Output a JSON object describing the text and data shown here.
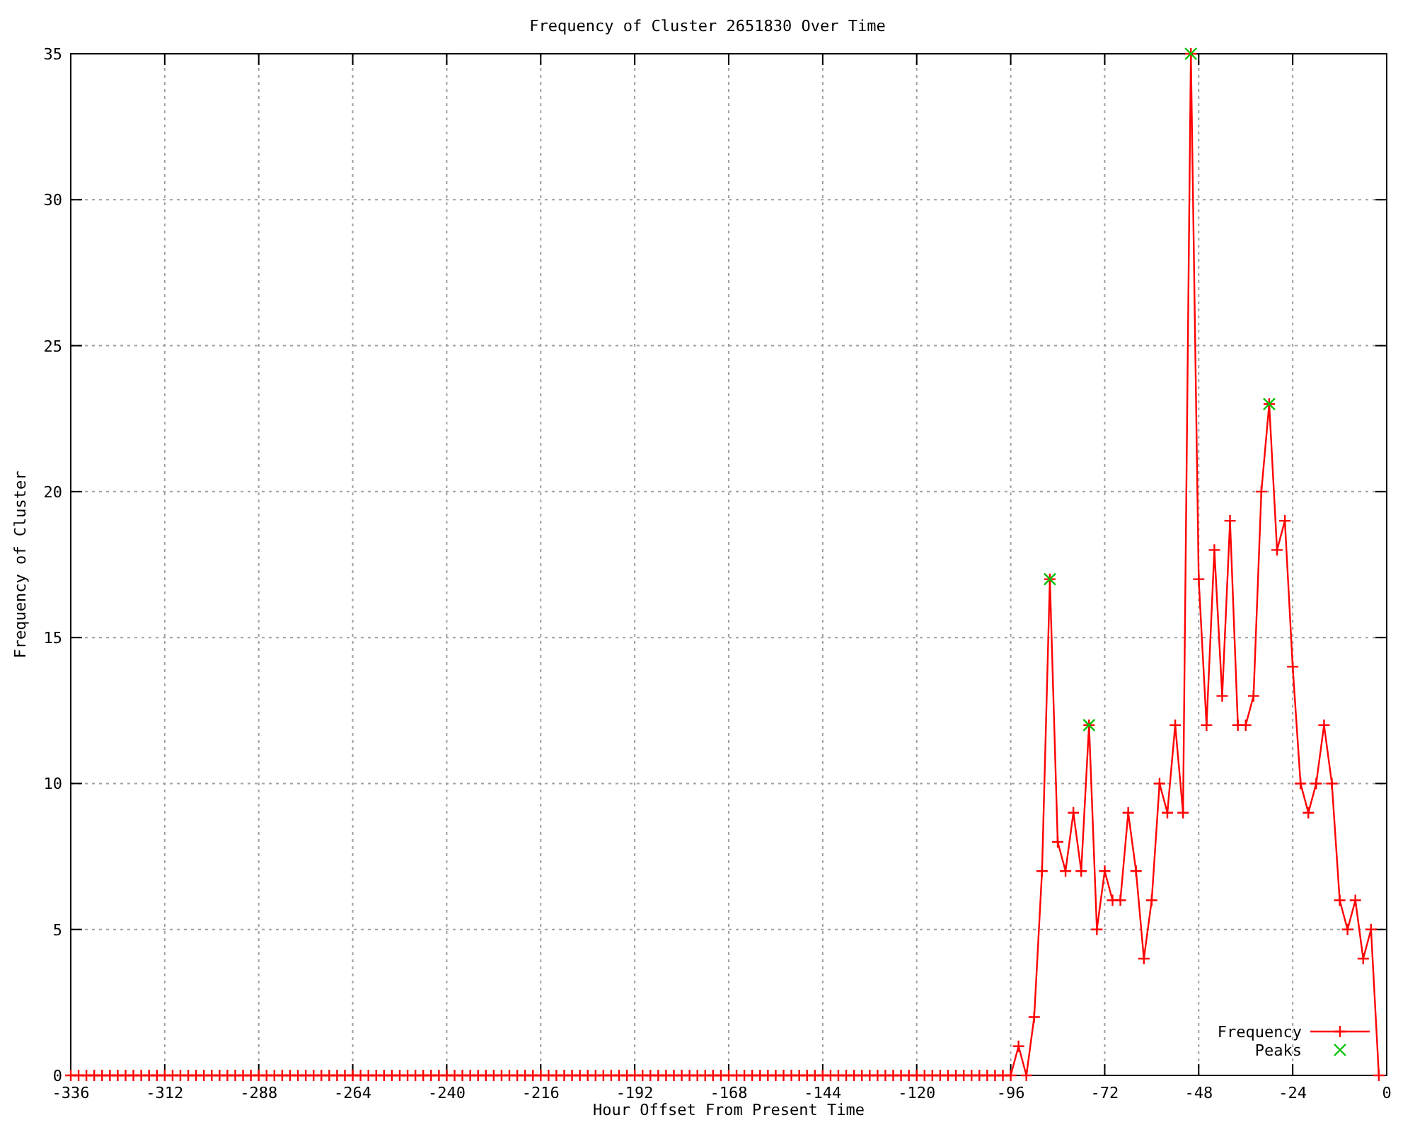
{
  "chart_data": {
    "type": "line",
    "title": "Frequency of Cluster 2651830 Over Time",
    "xlabel": "Hour Offset From Present Time",
    "ylabel": "Frequency of Cluster",
    "xlim": [
      -336,
      0
    ],
    "xticks": [
      -336,
      -312,
      -288,
      -264,
      -240,
      -216,
      -192,
      -168,
      -144,
      -120,
      -96,
      -72,
      -48,
      -24,
      0
    ],
    "ylim": [
      0,
      35
    ],
    "yticks": [
      0,
      5,
      10,
      15,
      20,
      25,
      30,
      35
    ],
    "grid": true,
    "legend": "bottom right",
    "line_style": "solid",
    "series": [
      {
        "name": "Frequency",
        "color": "#ff0000",
        "marker": "cross",
        "x": [
          -336,
          -334,
          -332,
          -330,
          -328,
          -326,
          -324,
          -322,
          -320,
          -318,
          -316,
          -314,
          -312,
          -310,
          -308,
          -306,
          -304,
          -302,
          -300,
          -298,
          -296,
          -294,
          -292,
          -290,
          -288,
          -286,
          -284,
          -282,
          -280,
          -278,
          -276,
          -274,
          -272,
          -270,
          -268,
          -266,
          -264,
          -262,
          -260,
          -258,
          -256,
          -254,
          -252,
          -250,
          -248,
          -246,
          -244,
          -242,
          -240,
          -238,
          -236,
          -234,
          -232,
          -230,
          -228,
          -226,
          -224,
          -222,
          -220,
          -218,
          -216,
          -214,
          -212,
          -210,
          -208,
          -206,
          -204,
          -202,
          -200,
          -198,
          -196,
          -194,
          -192,
          -190,
          -188,
          -186,
          -184,
          -182,
          -180,
          -178,
          -176,
          -174,
          -172,
          -170,
          -168,
          -166,
          -164,
          -162,
          -160,
          -158,
          -156,
          -154,
          -152,
          -150,
          -148,
          -146,
          -144,
          -142,
          -140,
          -138,
          -136,
          -134,
          -132,
          -130,
          -128,
          -126,
          -124,
          -122,
          -120,
          -118,
          -116,
          -114,
          -112,
          -110,
          -108,
          -106,
          -104,
          -102,
          -100,
          -98,
          -96,
          -94,
          -92,
          -90,
          -88,
          -86,
          -84,
          -82,
          -80,
          -78,
          -76,
          -74,
          -72,
          -70,
          -68,
          -66,
          -64,
          -62,
          -60,
          -58,
          -56,
          -54,
          -52,
          -50,
          -48,
          -46,
          -44,
          -42,
          -40,
          -38,
          -36,
          -34,
          -32,
          -30,
          -28,
          -26,
          -24,
          -22,
          -20,
          -18,
          -16,
          -14,
          -12,
          -10,
          -8,
          -6,
          -4,
          -2
        ],
        "values": [
          0,
          0,
          0,
          0,
          0,
          0,
          0,
          0,
          0,
          0,
          0,
          0,
          0,
          0,
          0,
          0,
          0,
          0,
          0,
          0,
          0,
          0,
          0,
          0,
          0,
          0,
          0,
          0,
          0,
          0,
          0,
          0,
          0,
          0,
          0,
          0,
          0,
          0,
          0,
          0,
          0,
          0,
          0,
          0,
          0,
          0,
          0,
          0,
          0,
          0,
          0,
          0,
          0,
          0,
          0,
          0,
          0,
          0,
          0,
          0,
          0,
          0,
          0,
          0,
          0,
          0,
          0,
          0,
          0,
          0,
          0,
          0,
          0,
          0,
          0,
          0,
          0,
          0,
          0,
          0,
          0,
          0,
          0,
          0,
          0,
          0,
          0,
          0,
          0,
          0,
          0,
          0,
          0,
          0,
          0,
          0,
          0,
          0,
          0,
          0,
          0,
          0,
          0,
          0,
          0,
          0,
          0,
          0,
          0,
          0,
          0,
          0,
          0,
          0,
          0,
          0,
          0,
          0,
          0,
          0,
          0,
          1,
          0,
          2,
          7,
          17,
          8,
          7,
          9,
          7,
          12,
          5,
          7,
          6,
          6,
          9,
          7,
          4,
          6,
          10,
          9,
          12,
          9,
          35,
          17,
          12,
          18,
          13,
          19,
          12,
          12,
          13,
          20,
          23,
          18,
          19,
          14,
          10,
          9,
          10,
          12,
          10,
          6,
          5,
          6,
          4,
          5,
          0
        ]
      },
      {
        "name": "Peaks",
        "type": "scatter",
        "color": "#00c000",
        "marker": "cross",
        "x": [
          -86,
          -76,
          -50,
          -30
        ],
        "values": [
          17,
          12,
          35,
          23
        ]
      }
    ]
  }
}
